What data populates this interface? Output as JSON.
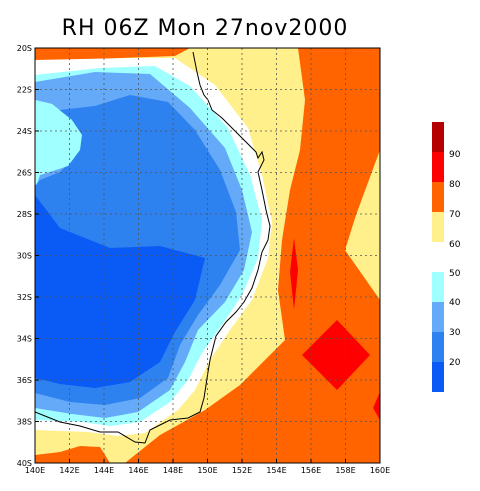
{
  "title": "RH 06Z Mon 27nov2000",
  "map": {
    "lon_range": [
      140,
      160
    ],
    "lat_range": [
      -40,
      -20
    ],
    "x_ticks": [
      "140E",
      "142E",
      "144E",
      "146E",
      "148E",
      "150E",
      "152E",
      "154E",
      "156E",
      "158E",
      "160E"
    ],
    "y_ticks": [
      "20S",
      "22S",
      "24S",
      "26S",
      "28S",
      "30S",
      "32S",
      "34S",
      "36S",
      "38S",
      "40S"
    ],
    "grid": "dotted",
    "coastline": "eastern Australia"
  },
  "colorbar": {
    "labels": [
      "20",
      "30",
      "40",
      "50",
      "60",
      "70",
      "80",
      "90"
    ],
    "colors": {
      "lt20": "#0a5af5",
      "20_30": "#2d82f0",
      "30_40": "#64aaf8",
      "40_50": "#a0ffff",
      "50_60": "#ffffff",
      "60_70": "#fff08c",
      "70_80": "#ff6400",
      "80_90": "#ff0000",
      "gt90": "#b40000"
    }
  }
}
